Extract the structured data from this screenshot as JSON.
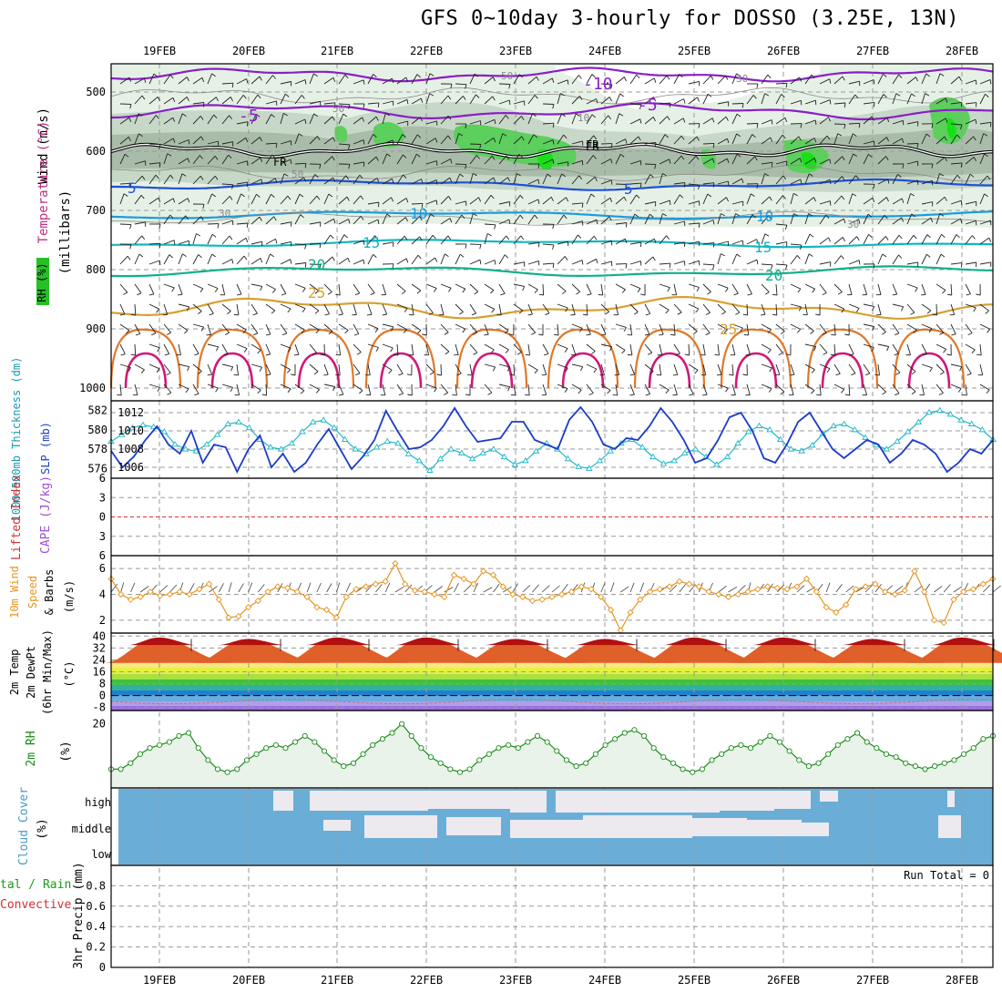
{
  "title": "GFS 0~10day 3-hourly for DOSSO (3.25E, 13N)",
  "dates": [
    "19FEB",
    "20FEB",
    "21FEB",
    "22FEB",
    "23FEB",
    "24FEB",
    "25FEB",
    "26FEB",
    "27FEB",
    "28FEB"
  ],
  "colors": {
    "rh_light": "#e6f1e6",
    "rh_mid": "#c8d8c8",
    "rh_dark": "#a9bca9",
    "rh_green": "#5ccf5c",
    "rh_bright": "#18e018",
    "temp_m10": "#8a1ec8",
    "temp_5": "#1f4fd6",
    "temp_10": "#1a9be0",
    "temp_15": "#12b8c0",
    "temp_20": "#10b08a",
    "temp_25": "#d8a030",
    "temp_30": "#e07828",
    "temp_35": "#d01878",
    "thickness": "#22b8c8",
    "slp": "#1c3cc8",
    "wind10": "#e69520",
    "rh2m": "#1a8a1a",
    "rh2m_fill": "#e9f3e9",
    "cloud": "#6aaed8",
    "cloud_gap": "#ece9ef",
    "dash_red": "#e03030"
  },
  "panels": {
    "upper": {
      "ylabel_main": "(millibars)",
      "ylabel_wind": "Wind (m/s)",
      "ylabel_temp": "Temperature (°C)",
      "ylabel_rh": "RH (%)",
      "y_ticks": [
        "500",
        "600",
        "700",
        "800",
        "900",
        "1000"
      ],
      "contour_labels": [
        "-10",
        "-5",
        "-5",
        "5",
        "5",
        "10",
        "10",
        "15",
        "15",
        "20",
        "20",
        "25",
        "25",
        "FR",
        "FR",
        "FR",
        "50",
        "50",
        "50",
        "30",
        "30",
        "30",
        "10"
      ]
    },
    "thickness_slp": {
      "ylabel_left": "1000~500mb Thickness (dm)",
      "ylabel_right": "SLP (mb)",
      "left_ticks": [
        "582",
        "580",
        "578",
        "576"
      ],
      "right_ticks": [
        "1012",
        "1010",
        "1008",
        "1006"
      ]
    },
    "li_cape": {
      "ylabel_left": "Lifted Index",
      "ylabel_right": "CAPE (J/kg)",
      "ticks": [
        "6",
        "3",
        "0",
        "3",
        "6"
      ]
    },
    "wind10": {
      "ylabel_a": "10m Wind",
      "ylabel_b": "Speed",
      "ylabel_c": "& Barbs",
      "ylabel_d": "(m/s)",
      "ticks": [
        "6",
        "4",
        "2"
      ]
    },
    "temp2m": {
      "ylabel_a": "2m Temp",
      "ylabel_b": "2m DewPt",
      "ylabel_c": "(6hr Min/Max)",
      "ylabel_d": "(°C)",
      "ticks": [
        "40",
        "32",
        "24",
        "16",
        "8",
        "0",
        "-8"
      ]
    },
    "rh2m": {
      "ylabel_a": "2m RH",
      "ylabel_b": "(%)",
      "ticks": [
        "20"
      ]
    },
    "cloud": {
      "ylabel_a": "Cloud Cover",
      "ylabel_b": "(%)",
      "levels": [
        "high",
        "middle",
        "low"
      ]
    },
    "precip": {
      "ylabel_a": "tal / Rain",
      "ylabel_b": "Convective",
      "ylabel_c": "3hr Precip (mm)",
      "ticks": [
        "0.8",
        "0.6",
        "0.4",
        "0.2",
        "0"
      ],
      "run_total": "Run Total = 0"
    }
  },
  "chart_data": {
    "type": "line",
    "x": [
      "19FEB",
      "20FEB",
      "21FEB",
      "22FEB",
      "23FEB",
      "24FEB",
      "25FEB",
      "26FEB",
      "27FEB",
      "28FEB"
    ],
    "slp_mb": [
      1007.8,
      1006.0,
      1007.2,
      1009.0,
      1010.5,
      1008.5,
      1007.5,
      1010.0,
      1006.5,
      1008.5,
      1008.2,
      1005.5,
      1008.0,
      1009.5,
      1006.0,
      1007.5,
      1005.5,
      1006.5,
      1008.5,
      1010.2,
      1008.0,
      1005.8,
      1007.2,
      1009.0,
      1012.2,
      1010.0,
      1008.0,
      1008.2,
      1009.0,
      1010.5,
      1012.5,
      1010.5,
      1008.8,
      1009.0,
      1009.2,
      1011.0,
      1011.0,
      1009.0,
      1008.5,
      1008.0,
      1011.2,
      1012.6,
      1011.0,
      1008.5,
      1008.0,
      1009.2,
      1009.0,
      1010.5,
      1012.5,
      1011.0,
      1009.0,
      1006.5,
      1007.0,
      1009.0,
      1011.5,
      1012.0,
      1010.0,
      1007.0,
      1006.5,
      1008.5,
      1011.0,
      1012.0,
      1010.0,
      1008.0,
      1007.0,
      1008.0,
      1009.0,
      1008.5,
      1006.5,
      1007.5,
      1009.0,
      1008.5,
      1007.5,
      1005.5,
      1006.5,
      1008.0,
      1007.5,
      1009.0
    ],
    "thickness_dm": [
      578.8,
      579.5,
      580.2,
      580.5,
      580.3,
      579.8,
      578.5,
      578.0,
      577.8,
      578.5,
      579.5,
      580.6,
      580.8,
      580.2,
      579.0,
      578.2,
      578.0,
      578.6,
      579.8,
      580.8,
      581.0,
      580.2,
      579.0,
      578.0,
      577.5,
      578.2,
      578.8,
      578.6,
      577.5,
      576.8,
      575.8,
      577.0,
      578.0,
      577.6,
      577.0,
      577.6,
      578.0,
      577.2,
      576.4,
      576.8,
      577.8,
      578.6,
      578.0,
      577.0,
      576.2,
      576.0,
      576.8,
      577.8,
      578.6,
      579.0,
      578.2,
      577.2,
      576.5,
      576.8,
      577.6,
      578.0,
      577.2,
      576.4,
      577.2,
      578.6,
      579.8,
      580.4,
      580.0,
      579.0,
      578.0,
      577.8,
      578.4,
      579.6,
      580.4,
      580.6,
      580.0,
      579.2,
      578.4,
      578.0,
      578.8,
      579.8,
      580.8,
      581.8,
      582.0,
      581.6,
      581.0,
      580.6,
      580.0,
      579.0
    ],
    "wind10_ms": [
      5.2,
      4.0,
      3.6,
      3.8,
      4.2,
      3.9,
      4.0,
      4.2,
      4.0,
      4.4,
      4.8,
      3.6,
      2.2,
      2.3,
      3.0,
      3.5,
      4.2,
      4.6,
      4.5,
      4.2,
      3.8,
      3.0,
      2.8,
      2.2,
      3.8,
      4.4,
      4.6,
      4.8,
      5.0,
      6.4,
      4.8,
      4.3,
      4.2,
      4.0,
      3.8,
      5.5,
      5.2,
      4.8,
      5.8,
      5.5,
      4.6,
      4.0,
      3.8,
      3.5,
      3.6,
      3.8,
      4.0,
      4.2,
      4.6,
      4.4,
      3.8,
      2.8,
      1.2,
      2.6,
      3.6,
      4.2,
      4.4,
      4.6,
      5.0,
      4.8,
      4.6,
      4.2,
      4.0,
      3.8,
      4.0,
      4.2,
      4.4,
      4.6,
      4.5,
      4.4,
      4.6,
      5.2,
      4.2,
      3.0,
      2.6,
      3.2,
      4.4,
      4.6,
      4.8,
      4.2,
      4.0,
      4.3,
      5.8,
      4.2,
      2.0,
      1.8,
      3.6,
      4.2,
      4.4,
      4.8,
      5.2
    ],
    "temp2m_max_c": [
      39,
      38,
      39,
      39,
      38,
      38,
      39,
      39,
      38,
      39
    ],
    "rh2m_percent": [
      5,
      5,
      7,
      10,
      12,
      13,
      14,
      16,
      17,
      12,
      8,
      5,
      4,
      5,
      8,
      10,
      12,
      13,
      12,
      14,
      16,
      14,
      11,
      8,
      6,
      7,
      10,
      13,
      15,
      17,
      20,
      16,
      12,
      9,
      7,
      5,
      4,
      5,
      8,
      10,
      12,
      13,
      12,
      14,
      16,
      14,
      11,
      8,
      6,
      7,
      10,
      13,
      15,
      17,
      18,
      16,
      12,
      9,
      7,
      5,
      4,
      5,
      8,
      10,
      12,
      13,
      12,
      14,
      16,
      14,
      11,
      8,
      6,
      7,
      10,
      13,
      15,
      17,
      14,
      12,
      10,
      9,
      7,
      6,
      5,
      6,
      7,
      8,
      10,
      12,
      15,
      16
    ],
    "precip_mm": [
      0,
      0,
      0,
      0,
      0,
      0,
      0,
      0,
      0,
      0
    ],
    "ylim_slp": [
      1005,
      1013
    ],
    "ylim_thickness": [
      575,
      583
    ],
    "ylim_wind": [
      1,
      7
    ],
    "ylim_precip": [
      0,
      1
    ],
    "grid": true
  }
}
